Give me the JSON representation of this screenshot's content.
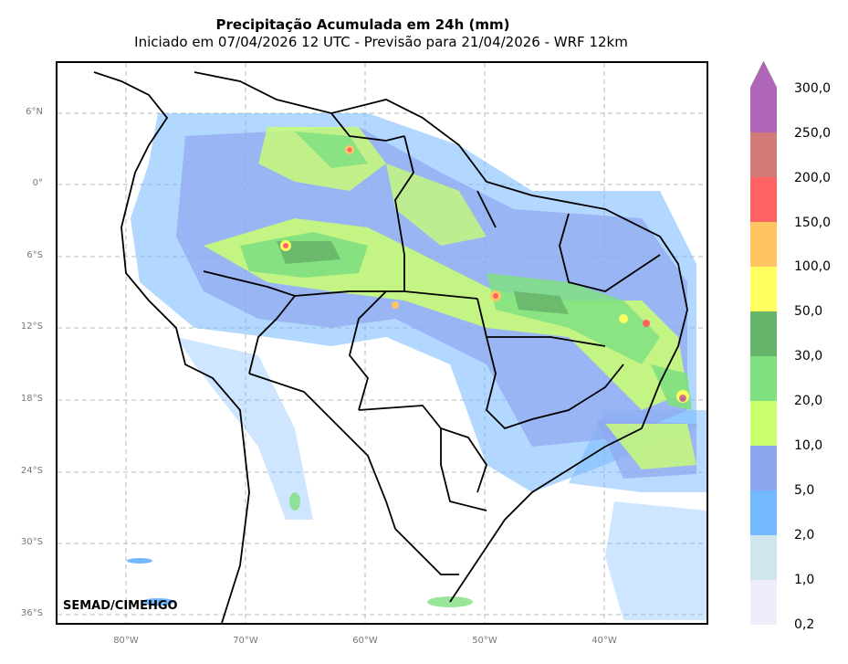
{
  "header": {
    "title": "Precipitação Acumulada em 24h (mm)",
    "subtitle": "Iniciado em 07/04/2026 12 UTC - Previsão para 21/04/2026 - WRF 12km"
  },
  "map": {
    "lat_labels": [
      "6°N",
      "0°",
      "6°S",
      "12°S",
      "18°S",
      "24°S",
      "30°S",
      "36°S"
    ],
    "lon_labels": [
      "80°W",
      "70°W",
      "60°W",
      "50°W",
      "40°W"
    ],
    "credit": "SEMAD/CIMEHGO"
  },
  "legend": {
    "labels": [
      "0,2",
      "1,0",
      "2,0",
      "5,0",
      "10,0",
      "20,0",
      "30,0",
      "50,0",
      "100,0",
      "150,0",
      "200,0",
      "250,0",
      "300,0"
    ],
    "colors": [
      "#eeeefa",
      "#cfe6ef",
      "#74b8ff",
      "#8ea6ee",
      "#caff70",
      "#80e080",
      "#67b56a",
      "#ffff60",
      "#ffc563",
      "#ff6262",
      "#d37b78",
      "#b065b8"
    ]
  }
}
